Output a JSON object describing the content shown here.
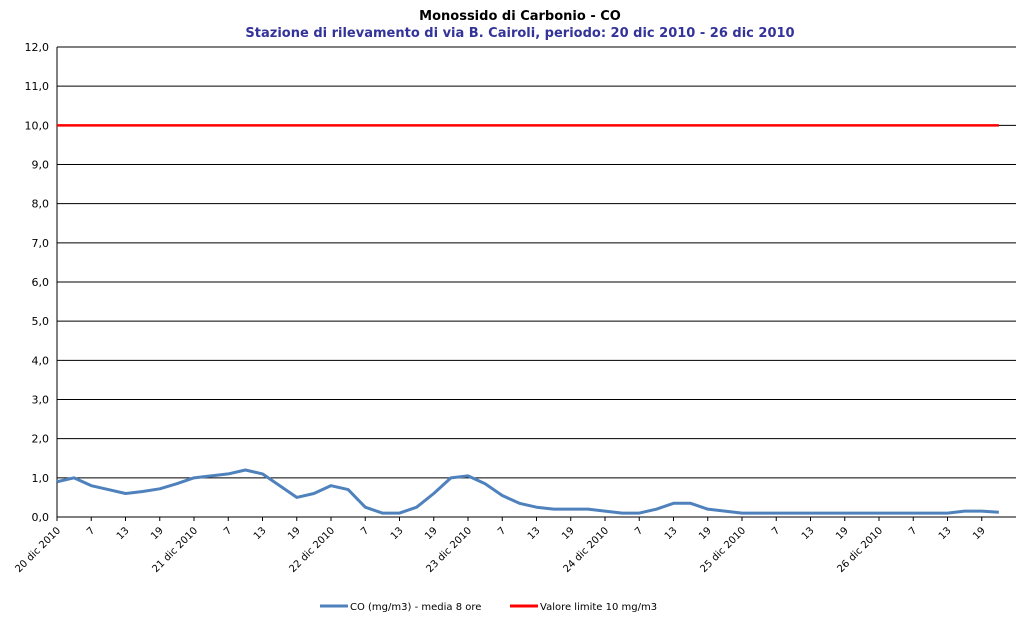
{
  "chart_data": {
    "type": "line",
    "title": "Monossido di Carbonio - CO",
    "subtitle": "Stazione di rilevamento di via B. Cairoli, periodo:  20 dic 2010 - 26 dic 2010",
    "categories": [
      "20 dic 2010",
      null,
      "7",
      null,
      "13",
      null,
      "19",
      null,
      "21 dic 2010",
      null,
      "7",
      null,
      "13",
      null,
      "19",
      null,
      "22 dic 2010",
      null,
      "7",
      null,
      "13",
      null,
      "19",
      null,
      "23 dic 2010",
      null,
      "7",
      null,
      "13",
      null,
      "19",
      null,
      "24 dic 2010",
      null,
      "7",
      null,
      "13",
      null,
      "19",
      null,
      "25 dic 2010",
      null,
      "7",
      null,
      "13",
      null,
      "19",
      null,
      "26 dic 2010",
      null,
      "7",
      null,
      "13",
      null,
      "19",
      null
    ],
    "series": [
      {
        "name": "CO (mg/m3) - media 8 ore",
        "color": "#4f81bd",
        "values": [
          0.9,
          1.0,
          0.8,
          0.7,
          0.6,
          0.65,
          0.72,
          0.85,
          1.0,
          1.05,
          1.1,
          1.2,
          1.1,
          0.8,
          0.5,
          0.6,
          0.8,
          0.7,
          0.25,
          0.1,
          0.1,
          0.25,
          0.6,
          1.0,
          1.05,
          0.85,
          0.55,
          0.35,
          0.25,
          0.2,
          0.2,
          0.2,
          0.15,
          0.1,
          0.1,
          0.2,
          0.35,
          0.35,
          0.2,
          0.15,
          0.1,
          0.1,
          0.1,
          0.1,
          0.1,
          0.1,
          0.1,
          0.1,
          0.1,
          0.1,
          0.1,
          0.1,
          0.1,
          0.15,
          0.15,
          0.12
        ]
      },
      {
        "name": "Valore limite 10 mg/m3",
        "color": "#ff0000",
        "values": [
          10,
          10,
          10,
          10,
          10,
          10,
          10,
          10,
          10,
          10,
          10,
          10,
          10,
          10,
          10,
          10,
          10,
          10,
          10,
          10,
          10,
          10,
          10,
          10,
          10,
          10,
          10,
          10,
          10,
          10,
          10,
          10,
          10,
          10,
          10,
          10,
          10,
          10,
          10,
          10,
          10,
          10,
          10,
          10,
          10,
          10,
          10,
          10,
          10,
          10,
          10,
          10,
          10,
          10,
          10,
          10
        ]
      }
    ],
    "ylim": [
      0,
      12
    ],
    "yticks": [
      {
        "value": 0,
        "label": "0,0"
      },
      {
        "value": 1,
        "label": "1,0"
      },
      {
        "value": 2,
        "label": "2,0"
      },
      {
        "value": 3,
        "label": "3,0"
      },
      {
        "value": 4,
        "label": "4,0"
      },
      {
        "value": 5,
        "label": "5,0"
      },
      {
        "value": 6,
        "label": "6,0"
      },
      {
        "value": 7,
        "label": "7,0"
      },
      {
        "value": 8,
        "label": "8,0"
      },
      {
        "value": 9,
        "label": "9,0"
      },
      {
        "value": 10,
        "label": "10,0"
      },
      {
        "value": 11,
        "label": "11,0"
      },
      {
        "value": 12,
        "label": "12,0"
      }
    ],
    "grid": true,
    "legend": "bottom"
  }
}
